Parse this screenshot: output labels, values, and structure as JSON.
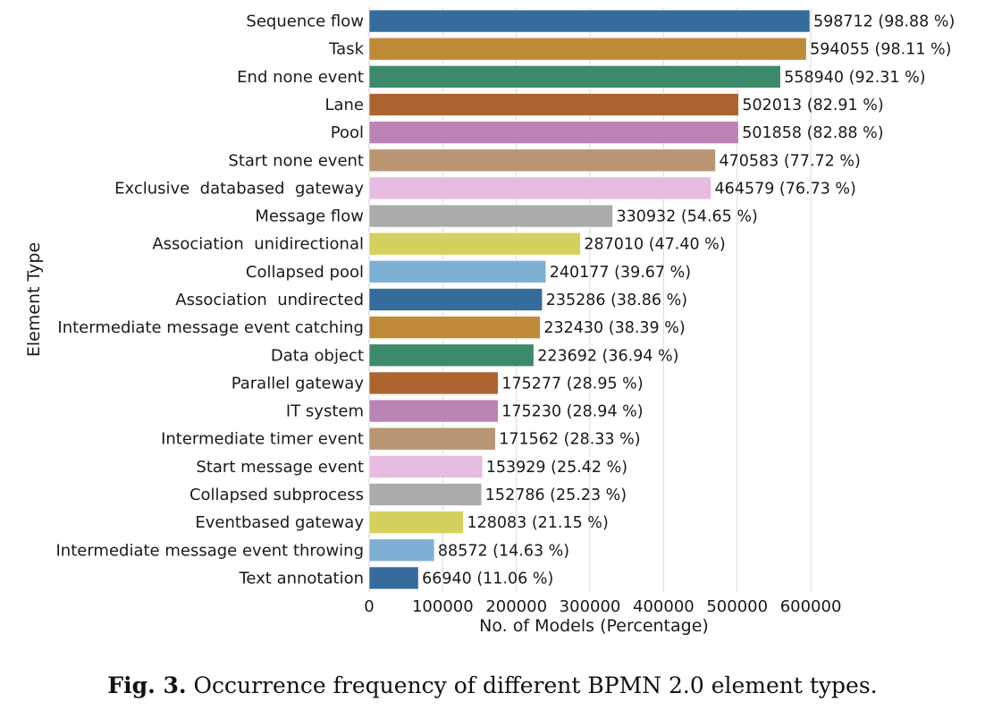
{
  "chart_data": {
    "type": "bar",
    "orientation": "horizontal",
    "xlabel": "No. of Models (Percentage)",
    "ylabel": "Element Type",
    "xlim": [
      0,
      640000
    ],
    "xticks": [
      0,
      100000,
      200000,
      300000,
      400000,
      500000,
      600000
    ],
    "xtick_labels": [
      "0",
      "100000",
      "200000",
      "300000",
      "400000",
      "500000",
      "600000"
    ],
    "grid": "vertical",
    "categories": [
      "Sequence flow",
      "Task",
      "End none event",
      "Lane",
      "Pool",
      "Start none event",
      "Exclusive  databased  gateway",
      "Message flow",
      "Association  unidirectional",
      "Collapsed pool",
      "Association  undirected",
      "Intermediate message event catching",
      "Data object",
      "Parallel gateway",
      "IT system",
      "Intermediate timer event",
      "Start message event",
      "Collapsed subprocess",
      "Eventbased gateway",
      "Intermediate message event throwing",
      "Text annotation"
    ],
    "values": [
      598712,
      594055,
      558940,
      502013,
      501858,
      470583,
      464579,
      330932,
      287010,
      240177,
      235286,
      232430,
      223692,
      175277,
      175230,
      171562,
      153929,
      152786,
      128083,
      88572,
      66940
    ],
    "data_labels": [
      "598712 (98.88 %)",
      "594055 (98.11 %)",
      "558940 (92.31 %)",
      "502013 (82.91 %)",
      "501858 (82.88 %)",
      "470583 (77.72 %)",
      "464579 (76.73 %)",
      "330932 (54.65 %)",
      "287010 (47.40 %)",
      "240177 (39.67 %)",
      "235286 (38.86 %)",
      "232430 (38.39 %)",
      "223692 (36.94 %)",
      "175277 (28.95 %)",
      "175230 (28.94 %)",
      "171562 (28.33 %)",
      "153929 (25.42 %)",
      "152786 (25.23 %)",
      "128083 (21.15 %)",
      "88572 (14.63 %)",
      "66940 (11.06 %)"
    ],
    "colors": [
      "#356c9c",
      "#bf8a38",
      "#3d8a6a",
      "#ae6430",
      "#bb84b4",
      "#b99574",
      "#e7bbe0",
      "#aaacab",
      "#d5d15f",
      "#7eb0d6"
    ]
  },
  "caption": {
    "label": "Fig. 3.",
    "text": "Occurrence frequency of different BPMN 2.0 element types."
  }
}
